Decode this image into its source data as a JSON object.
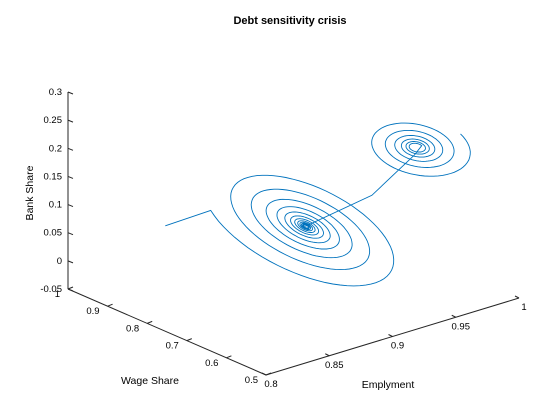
{
  "chart_data": {
    "type": "line3d",
    "title": "Debt sensitivity crisis",
    "xlabel": "Emplyment",
    "ylabel": "Wage Share",
    "zlabel": "Bank Share",
    "xlim": [
      0.8,
      1.0
    ],
    "ylim": [
      0.5,
      1.0
    ],
    "zlim": [
      -0.05,
      0.3
    ],
    "x_ticks": [
      "0.8",
      "0.85",
      "0.9",
      "0.95",
      "1"
    ],
    "y_ticks": [
      "0.5",
      "0.6",
      "0.7",
      "0.8",
      "0.9",
      "1"
    ],
    "z_ticks": [
      "-0.05",
      "0",
      "0.05",
      "0.1",
      "0.15",
      "0.2",
      "0.25",
      "0.3"
    ],
    "grid": false,
    "series_color": "#0072BD",
    "series": [
      {
        "spiral": {
          "start": {
            "x": 0.855,
            "y": 0.93,
            "z": 0.046
          },
          "center": {
            "x": 0.894,
            "y": 0.7,
            "z": 0.089
          },
          "initial_radius": {
            "x": 0.05,
            "y": 0.2
          },
          "tilt": 0.05,
          "phase": 2.6,
          "turns": 12,
          "decay": 0.32
        },
        "path": [
          {
            "x": 0.894,
            "y": 0.7,
            "z": 0.089
          },
          {
            "x": 0.915,
            "y": 0.6,
            "z": 0.16
          },
          {
            "x": 0.93,
            "y": 0.54,
            "z": 0.24
          }
        ],
        "outer_spiral": {
          "center": {
            "x": 0.93,
            "y": 0.535,
            "z": 0.255
          },
          "initial_radius": {
            "x": 0.004,
            "y": 0.01
          },
          "tilt": 0.03,
          "phase": 0,
          "turns": 6,
          "growth": 0.12
        }
      }
    ]
  }
}
